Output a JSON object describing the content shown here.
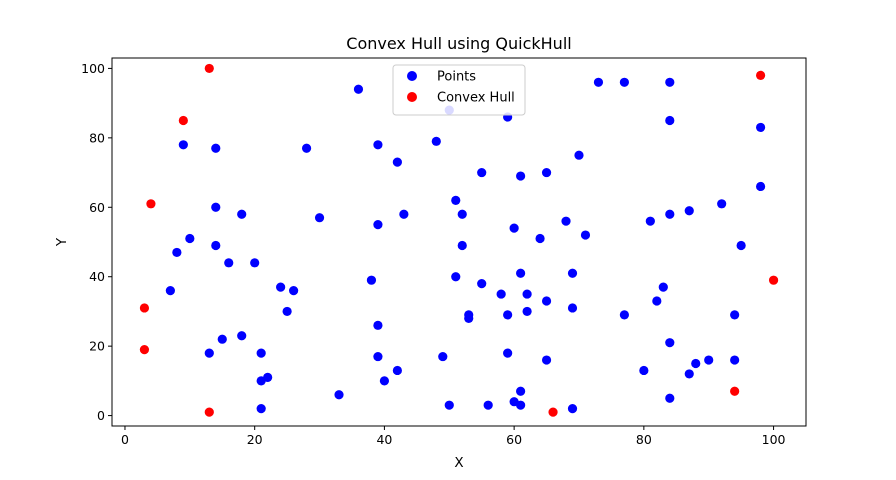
{
  "chart_data": {
    "type": "scatter",
    "title": "Convex Hull using QuickHull",
    "xlabel": "X",
    "ylabel": "Y",
    "xlim": [
      -2,
      105
    ],
    "ylim": [
      -3,
      103
    ],
    "xticks": [
      0,
      20,
      40,
      60,
      80,
      100
    ],
    "yticks": [
      0,
      20,
      40,
      60,
      80,
      100
    ],
    "legend_position": "top-center",
    "series": [
      {
        "name": "Points",
        "color": "#0000ff",
        "points": [
          [
            9,
            78
          ],
          [
            14,
            77
          ],
          [
            14,
            60
          ],
          [
            10,
            51
          ],
          [
            8,
            47
          ],
          [
            14,
            49
          ],
          [
            16,
            44
          ],
          [
            18,
            58
          ],
          [
            7,
            36
          ],
          [
            13,
            18
          ],
          [
            15,
            22
          ],
          [
            18,
            23
          ],
          [
            20,
            44
          ],
          [
            21,
            18
          ],
          [
            21,
            10
          ],
          [
            22,
            11
          ],
          [
            21,
            2
          ],
          [
            24,
            37
          ],
          [
            25,
            30
          ],
          [
            26,
            36
          ],
          [
            28,
            77
          ],
          [
            30,
            57
          ],
          [
            33,
            6
          ],
          [
            36,
            94
          ],
          [
            38,
            39
          ],
          [
            39,
            78
          ],
          [
            39,
            55
          ],
          [
            39,
            26
          ],
          [
            39,
            17
          ],
          [
            40,
            10
          ],
          [
            42,
            73
          ],
          [
            42,
            13
          ],
          [
            43,
            58
          ],
          [
            48,
            79
          ],
          [
            49,
            17
          ],
          [
            50,
            88
          ],
          [
            50,
            3
          ],
          [
            51,
            62
          ],
          [
            51,
            40
          ],
          [
            52,
            58
          ],
          [
            52,
            49
          ],
          [
            53,
            29
          ],
          [
            53,
            28
          ],
          [
            55,
            70
          ],
          [
            55,
            38
          ],
          [
            56,
            3
          ],
          [
            58,
            35
          ],
          [
            59,
            86
          ],
          [
            59,
            29
          ],
          [
            59,
            18
          ],
          [
            60,
            54
          ],
          [
            60,
            4
          ],
          [
            61,
            69
          ],
          [
            61,
            41
          ],
          [
            61,
            7
          ],
          [
            61,
            3
          ],
          [
            62,
            35
          ],
          [
            62,
            30
          ],
          [
            64,
            51
          ],
          [
            65,
            70
          ],
          [
            65,
            33
          ],
          [
            65,
            16
          ],
          [
            68,
            56
          ],
          [
            69,
            41
          ],
          [
            69,
            31
          ],
          [
            69,
            2
          ],
          [
            70,
            75
          ],
          [
            71,
            52
          ],
          [
            73,
            96
          ],
          [
            77,
            96
          ],
          [
            77,
            29
          ],
          [
            80,
            13
          ],
          [
            81,
            56
          ],
          [
            82,
            33
          ],
          [
            83,
            37
          ],
          [
            84,
            96
          ],
          [
            84,
            85
          ],
          [
            84,
            58
          ],
          [
            84,
            21
          ],
          [
            84,
            5
          ],
          [
            87,
            59
          ],
          [
            87,
            12
          ],
          [
            88,
            15
          ],
          [
            90,
            16
          ],
          [
            92,
            61
          ],
          [
            94,
            29
          ],
          [
            94,
            16
          ],
          [
            95,
            49
          ],
          [
            98,
            83
          ],
          [
            98,
            66
          ]
        ]
      },
      {
        "name": "Convex Hull",
        "color": "#ff0000",
        "points": [
          [
            13,
            100
          ],
          [
            9,
            85
          ],
          [
            4,
            61
          ],
          [
            3,
            31
          ],
          [
            3,
            19
          ],
          [
            13,
            1
          ],
          [
            66,
            1
          ],
          [
            94,
            7
          ],
          [
            100,
            39
          ],
          [
            98,
            98
          ]
        ]
      }
    ]
  }
}
